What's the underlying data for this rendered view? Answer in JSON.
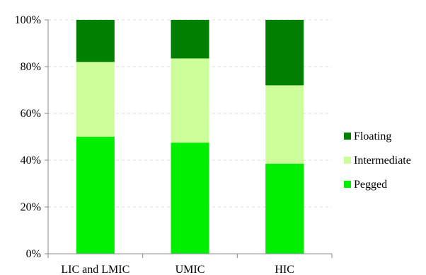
{
  "chart_data": {
    "type": "bar",
    "stacked": true,
    "percent_stacked": true,
    "categories": [
      "LIC and LMIC",
      "UMIC",
      "HIC"
    ],
    "series": [
      {
        "name": "Pegged",
        "values": [
          50,
          47.5,
          38.5
        ],
        "color": "#00ee00"
      },
      {
        "name": "Intermediate",
        "values": [
          32,
          36,
          33.5
        ],
        "color": "#ccff99"
      },
      {
        "name": "Floating",
        "values": [
          18,
          16.5,
          28
        ],
        "color": "#008000"
      }
    ],
    "y_ticks": [
      "0%",
      "20%",
      "40%",
      "60%",
      "80%",
      "100%"
    ],
    "ylim": [
      0,
      100
    ],
    "grid": "horizontal-dashed",
    "legend_position": "right",
    "legend_order": [
      "Floating",
      "Intermediate",
      "Pegged"
    ]
  }
}
